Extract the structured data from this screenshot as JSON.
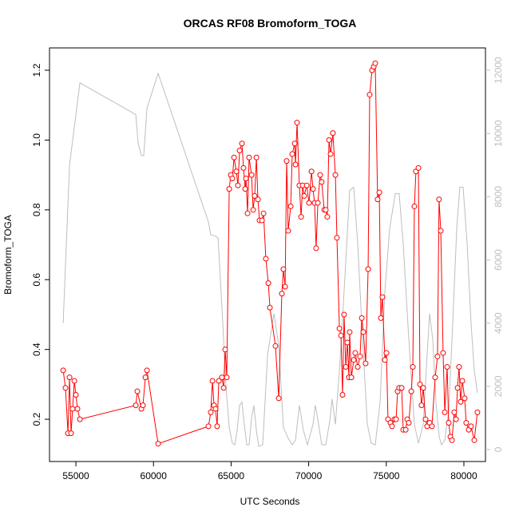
{
  "chart_data": {
    "type": "line",
    "title": "ORCAS RF08 Bromoform_TOGA",
    "xlabel": "UTC Seconds",
    "ylabel": "Bromoform_TOGA",
    "xlim": [
      53300,
      81390
    ],
    "ylim": [
      0.079,
      1.264
    ],
    "y2lim": [
      -379,
      12707
    ],
    "xticks": [
      55000,
      60000,
      65000,
      70000,
      75000,
      80000
    ],
    "yticks": [
      0.2,
      0.4,
      0.6,
      0.8,
      {
        "value": 1,
        "label": "1.0"
      },
      1.2
    ],
    "y2ticks": [
      0,
      2000,
      4000,
      6000,
      8000,
      10000,
      12000
    ],
    "grid": false,
    "series": [
      {
        "color": "#bebebe",
        "axis": "y2",
        "markers": false,
        "x": [
          54180,
          54590,
          55260,
          58860,
          59010,
          59220,
          59370,
          59580,
          60300,
          63540,
          63690,
          64000,
          64160,
          64410,
          64670,
          64880,
          65080,
          65240,
          65390,
          65550,
          65700,
          65850,
          66010,
          66160,
          66320,
          66470,
          66630,
          66780,
          67040,
          67350,
          67760,
          68070,
          68370,
          68630,
          68940,
          69150,
          69400,
          69660,
          69920,
          70280,
          70430,
          70640,
          70840,
          71100,
          71360,
          71510,
          71720,
          71980,
          72340,
          72640,
          72900,
          73160,
          73470,
          73780,
          74030,
          74290,
          74600,
          74910,
          75220,
          75580,
          75830,
          76090,
          76450,
          76810,
          77070,
          77380,
          77630,
          77790,
          77990,
          78200,
          78410,
          78560,
          78770,
          79020,
          79280,
          79540,
          79740,
          79950,
          80210,
          80460,
          80670,
          80870
        ],
        "values": [
          4000,
          9000,
          11600,
          10600,
          9700,
          9300,
          9300,
          10800,
          11900,
          7200,
          6800,
          6750,
          6700,
          4500,
          2000,
          700,
          200,
          150,
          600,
          1400,
          1500,
          800,
          150,
          150,
          1000,
          1400,
          600,
          100,
          150,
          3000,
          4300,
          3300,
          700,
          400,
          150,
          300,
          1400,
          600,
          150,
          800,
          1400,
          800,
          150,
          150,
          900,
          1600,
          800,
          2500,
          5500,
          8200,
          8300,
          6500,
          3500,
          800,
          200,
          150,
          1500,
          5000,
          7000,
          8100,
          8100,
          6500,
          3500,
          800,
          200,
          800,
          3000,
          4300,
          3500,
          1500,
          400,
          150,
          300,
          1200,
          4000,
          7000,
          8300,
          8300,
          6500,
          4000,
          2500,
          1800
        ]
      },
      {
        "color": "#ff0000",
        "axis": "y",
        "markers": true,
        "x": [
          54180,
          54330,
          54490,
          54590,
          54690,
          54790,
          54900,
          55000,
          55100,
          55260,
          58860,
          58960,
          59220,
          59320,
          59480,
          59580,
          60300,
          63540,
          63690,
          63800,
          63900,
          64000,
          64100,
          64210,
          64410,
          64520,
          64620,
          64720,
          64880,
          64980,
          65080,
          65190,
          65340,
          65440,
          65550,
          65700,
          65800,
          65910,
          65960,
          66060,
          66160,
          66320,
          66420,
          66520,
          66630,
          66730,
          66830,
          66990,
          67090,
          67240,
          67400,
          67500,
          67860,
          68070,
          68270,
          68370,
          68480,
          68580,
          68680,
          68840,
          68940,
          69100,
          69150,
          69250,
          69400,
          69510,
          69610,
          69710,
          69870,
          70020,
          70180,
          70280,
          70380,
          70480,
          70590,
          70740,
          70840,
          71000,
          71100,
          71200,
          71310,
          71410,
          71560,
          71720,
          71820,
          71980,
          72080,
          72180,
          72280,
          72390,
          72490,
          72590,
          72640,
          72750,
          72900,
          73000,
          73160,
          73310,
          73420,
          73520,
          73670,
          73830,
          73930,
          74080,
          74190,
          74290,
          74440,
          74550,
          74650,
          74750,
          74910,
          75010,
          75110,
          75270,
          75370,
          75520,
          75630,
          75730,
          75830,
          75990,
          76090,
          76250,
          76350,
          76450,
          76610,
          76710,
          76810,
          76910,
          77070,
          77170,
          77270,
          77380,
          77530,
          77630,
          77790,
          77940,
          78150,
          78300,
          78400,
          78510,
          78660,
          78770,
          78920,
          79020,
          79130,
          79230,
          79380,
          79490,
          79590,
          79690,
          79790,
          79900,
          80050,
          80150,
          80310,
          80460,
          80670,
          80870
        ],
        "values": [
          0.34,
          0.29,
          0.16,
          0.32,
          0.16,
          0.23,
          0.31,
          0.27,
          0.23,
          0.2,
          0.24,
          0.28,
          0.23,
          0.24,
          0.32,
          0.34,
          0.13,
          0.18,
          0.22,
          0.31,
          0.24,
          0.23,
          0.18,
          0.31,
          0.32,
          0.29,
          0.4,
          0.32,
          0.86,
          0.9,
          0.89,
          0.95,
          0.91,
          0.87,
          0.97,
          0.99,
          0.92,
          0.86,
          0.89,
          0.79,
          0.95,
          0.9,
          0.8,
          0.84,
          0.95,
          0.83,
          0.77,
          0.77,
          0.79,
          0.66,
          0.59,
          0.52,
          0.41,
          0.26,
          0.56,
          0.63,
          0.58,
          0.94,
          0.74,
          0.81,
          0.96,
          0.99,
          0.93,
          1.05,
          0.87,
          0.78,
          0.87,
          0.84,
          0.87,
          0.82,
          0.91,
          0.86,
          0.82,
          0.69,
          0.82,
          0.9,
          0.88,
          0.8,
          0.8,
          0.78,
          1.0,
          0.96,
          1.02,
          0.9,
          0.72,
          0.46,
          0.44,
          0.27,
          0.5,
          0.35,
          0.42,
          0.32,
          0.45,
          0.32,
          0.37,
          0.39,
          0.35,
          0.38,
          0.49,
          0.45,
          0.36,
          0.63,
          1.13,
          1.2,
          1.21,
          1.22,
          0.83,
          0.85,
          0.49,
          0.55,
          0.37,
          0.39,
          0.2,
          0.19,
          0.18,
          0.2,
          0.2,
          0.28,
          0.29,
          0.29,
          0.17,
          0.17,
          0.2,
          0.19,
          0.28,
          0.35,
          0.81,
          0.91,
          0.92,
          0.3,
          0.24,
          0.29,
          0.2,
          0.18,
          0.19,
          0.18,
          0.32,
          0.38,
          0.83,
          0.74,
          0.39,
          0.22,
          0.35,
          0.19,
          0.15,
          0.14,
          0.22,
          0.2,
          0.29,
          0.35,
          0.25,
          0.31,
          0.26,
          0.19,
          0.17,
          0.18,
          0.14,
          0.22
        ]
      }
    ]
  }
}
